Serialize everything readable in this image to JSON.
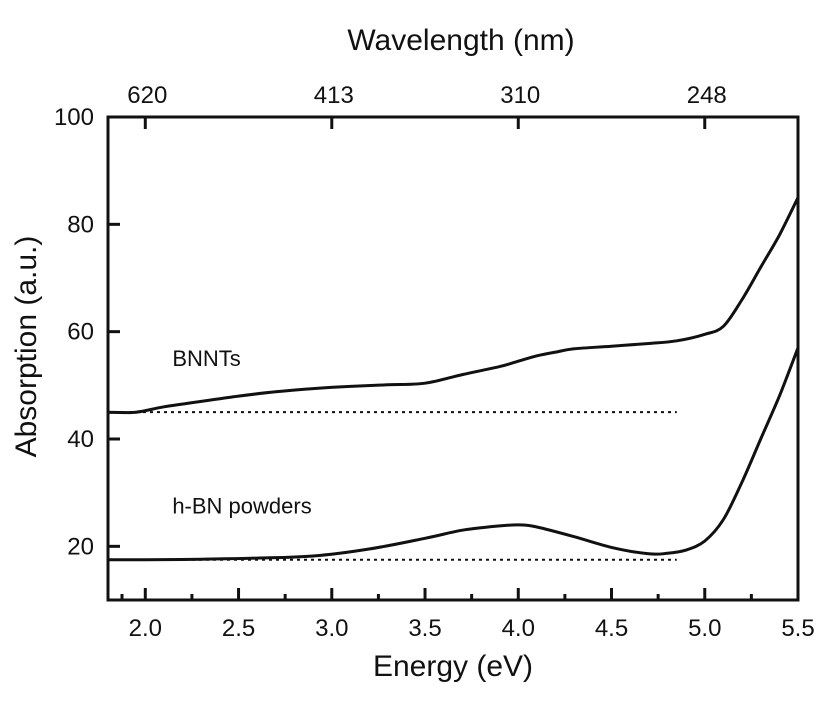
{
  "chart_data": {
    "type": "line",
    "title": "",
    "xlabel": "Energy (eV)",
    "ylabel": "Absorption (a.u.)",
    "top_xlabel": "Wavelength (nm)",
    "xlim": [
      1.8,
      5.5
    ],
    "ylim": [
      10,
      100
    ],
    "xticks": [
      2.0,
      2.5,
      3.0,
      3.5,
      4.0,
      4.5,
      5.0,
      5.5
    ],
    "xtick_labels": [
      "2.0",
      "2.5",
      "3.0",
      "3.5",
      "4.0",
      "4.5",
      "5.0",
      "5.5"
    ],
    "yticks": [
      20,
      40,
      60,
      80,
      100
    ],
    "ytick_labels": [
      "20",
      "40",
      "60",
      "80",
      "100"
    ],
    "top_ticks": [
      {
        "energy": 2.0,
        "label": "620"
      },
      {
        "energy": 3.0,
        "label": "413"
      },
      {
        "energy": 4.0,
        "label": "310"
      },
      {
        "energy": 5.0,
        "label": "248"
      }
    ],
    "grid": false,
    "series": [
      {
        "name": "BNNTs",
        "x": [
          1.8,
          1.95,
          2.1,
          2.3,
          2.5,
          2.7,
          2.9,
          3.1,
          3.3,
          3.5,
          3.7,
          3.9,
          4.0,
          4.1,
          4.2,
          4.3,
          4.5,
          4.7,
          4.85,
          5.0,
          5.1,
          5.2,
          5.3,
          5.4,
          5.5
        ],
        "y": [
          45,
          45,
          46,
          47,
          48,
          48.8,
          49.4,
          49.8,
          50.1,
          50.4,
          52,
          53.5,
          54.5,
          55.5,
          56.2,
          56.8,
          57.3,
          57.8,
          58.3,
          59.5,
          61,
          66,
          72,
          78,
          85
        ]
      },
      {
        "name": "h-BN powders",
        "x": [
          1.8,
          2.0,
          2.3,
          2.6,
          2.9,
          3.2,
          3.5,
          3.7,
          3.9,
          4.0,
          4.1,
          4.3,
          4.5,
          4.7,
          4.8,
          4.9,
          5.0,
          5.1,
          5.2,
          5.3,
          5.4,
          5.5
        ],
        "y": [
          17.5,
          17.5,
          17.6,
          17.8,
          18.2,
          19.5,
          21.5,
          23,
          23.8,
          24,
          23.6,
          21.8,
          19.8,
          18.6,
          18.7,
          19.3,
          21,
          25,
          32,
          40,
          48,
          57
        ]
      }
    ],
    "baselines": [
      {
        "name": "BNNTs baseline",
        "x": [
          1.8,
          4.85
        ],
        "y": [
          45,
          45
        ]
      },
      {
        "name": "h-BN powders baseline",
        "x": [
          1.8,
          4.85
        ],
        "y": [
          17.5,
          17.5
        ]
      }
    ],
    "annotations": [
      {
        "text": "BNNTs",
        "x": 1.85,
        "y": 51
      },
      {
        "text": "h-BN powders",
        "x": 1.85,
        "y": 23.5
      }
    ]
  }
}
